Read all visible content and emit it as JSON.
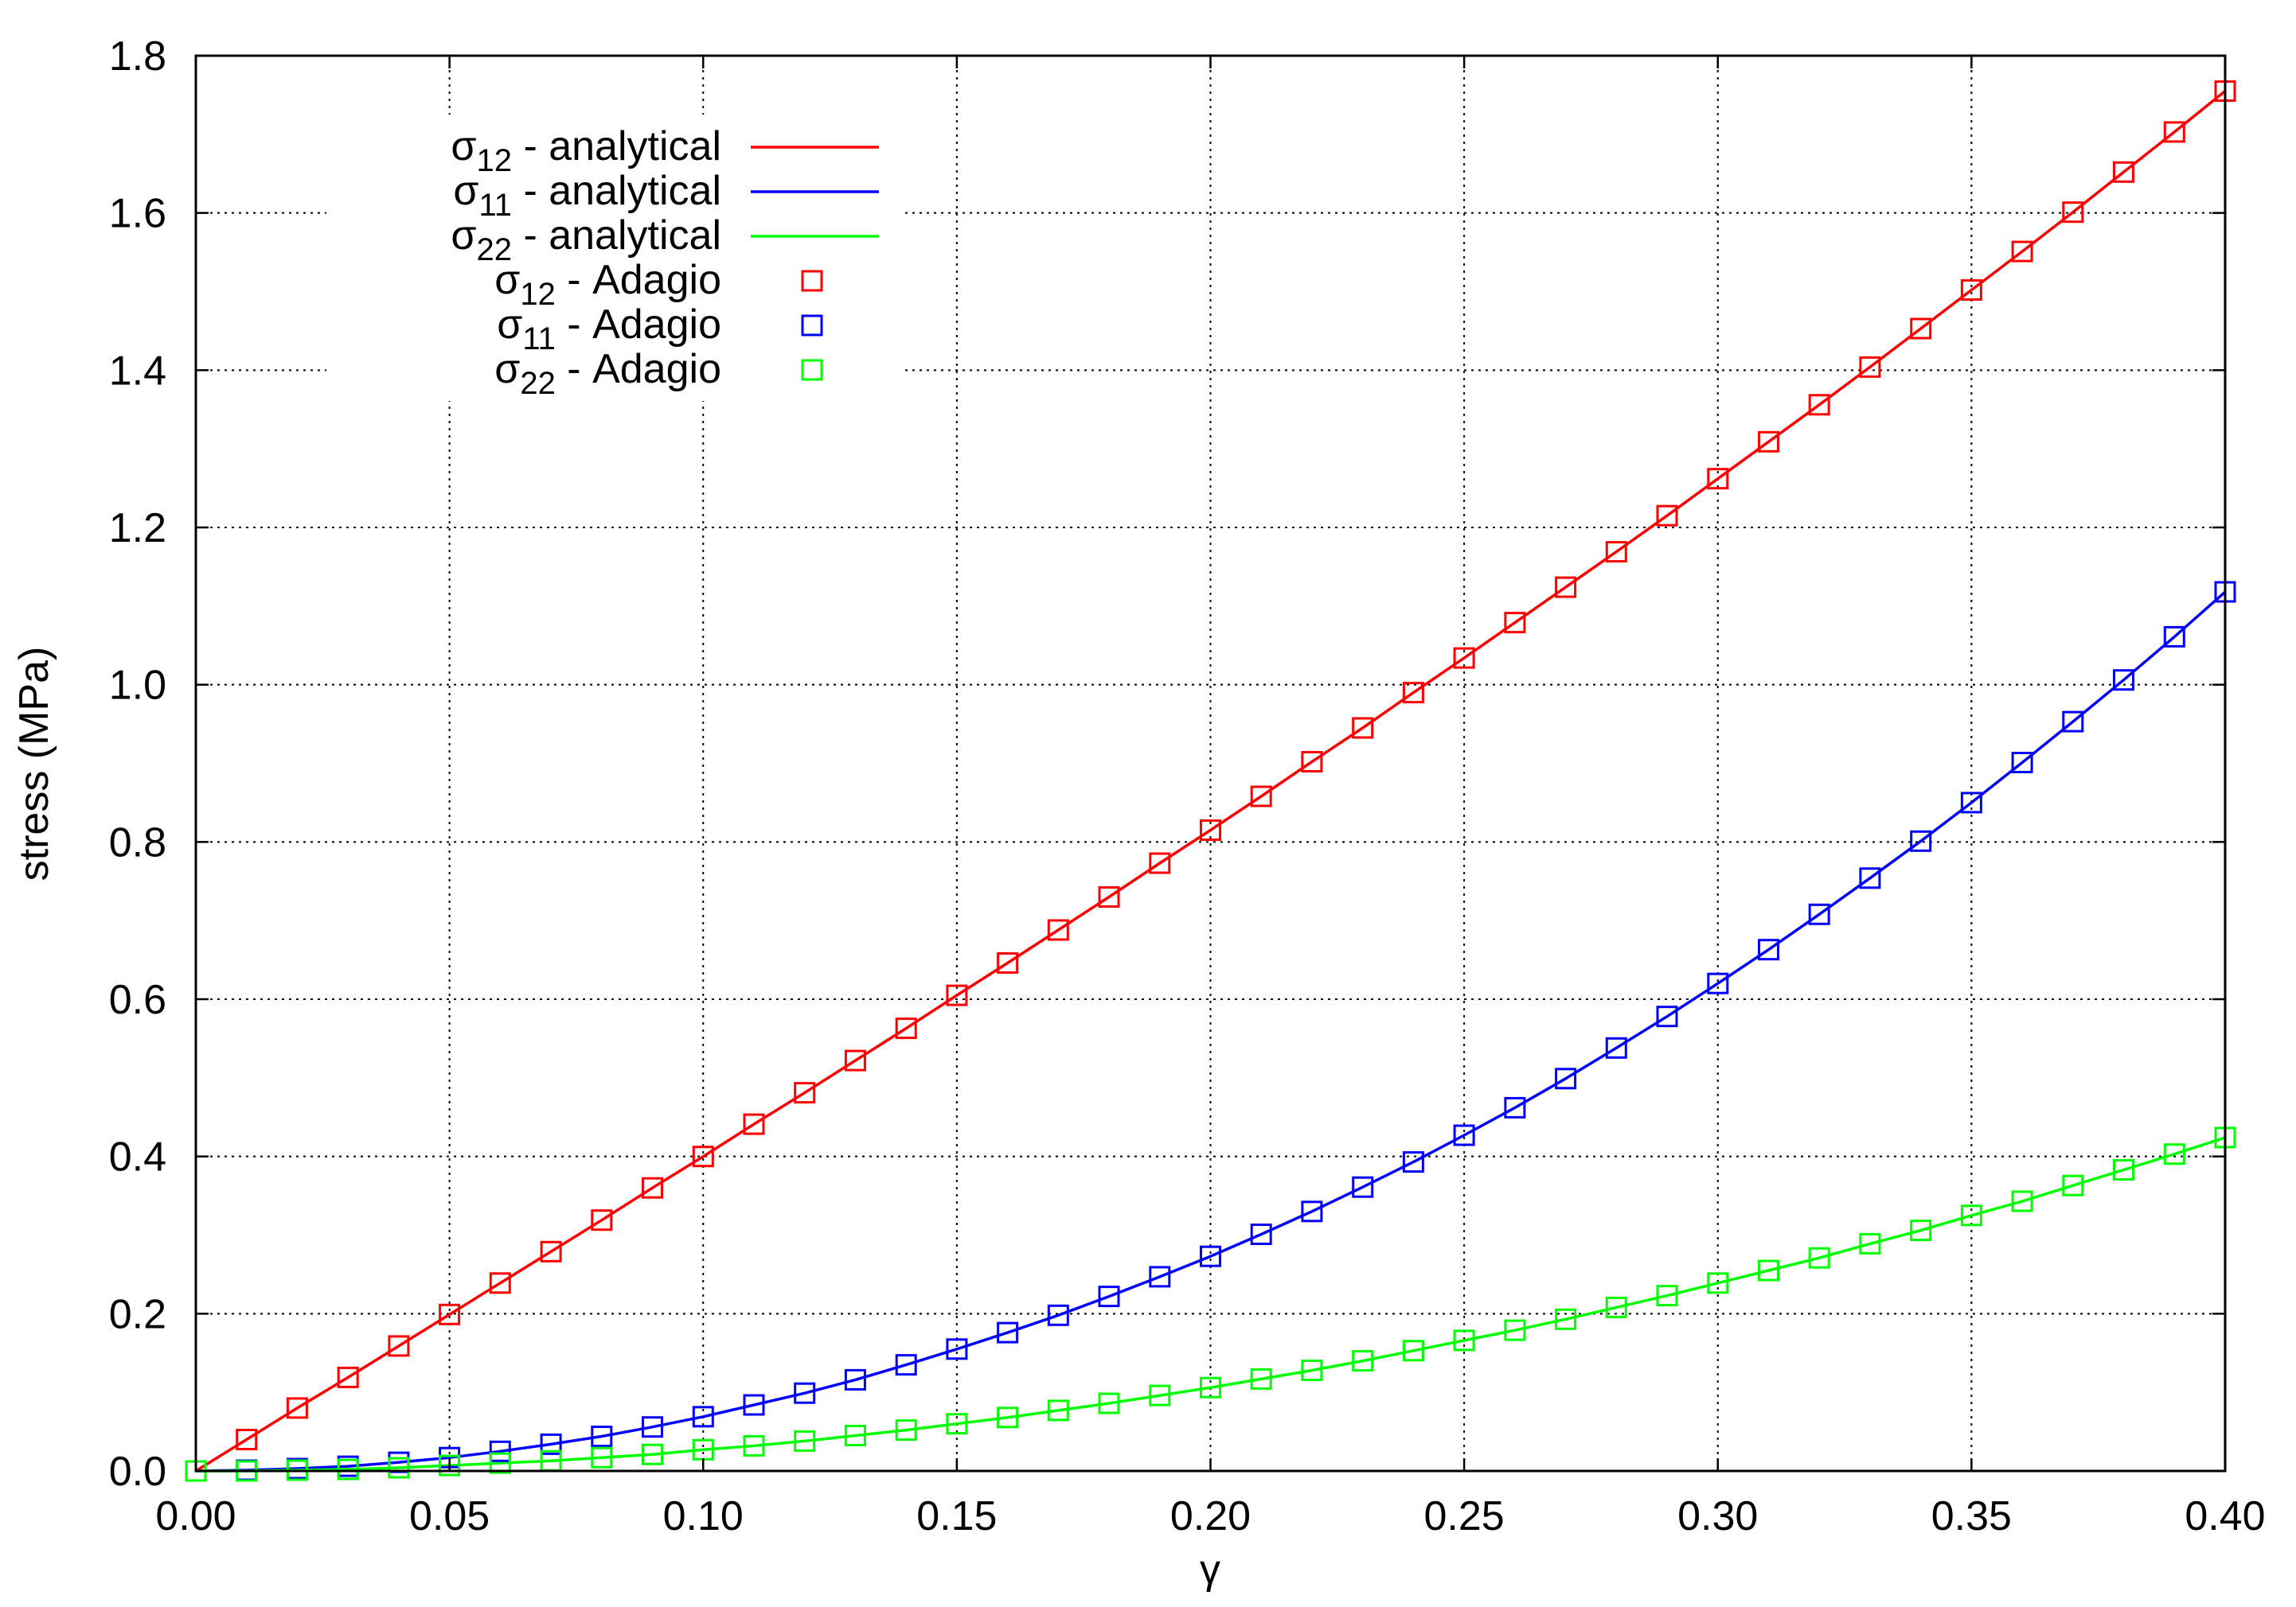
{
  "chart_data": {
    "type": "line",
    "xlabel": "γ",
    "ylabel": "stress (MPa)",
    "xlim": [
      0,
      0.4
    ],
    "ylim": [
      0,
      1.8
    ],
    "xticks": [
      "0.00",
      "0.05",
      "0.10",
      "0.15",
      "0.20",
      "0.25",
      "0.30",
      "0.35",
      "0.40"
    ],
    "yticks": [
      "0.0",
      "0.2",
      "0.4",
      "0.6",
      "0.8",
      "1.0",
      "1.2",
      "1.4",
      "1.6",
      "1.8"
    ],
    "grid": true,
    "legend_position": "top-left",
    "x": [
      0,
      0.01,
      0.02,
      0.03,
      0.04,
      0.05,
      0.06,
      0.07,
      0.08,
      0.09,
      0.1,
      0.11,
      0.12,
      0.13,
      0.14,
      0.15,
      0.16,
      0.17,
      0.18,
      0.19,
      0.2,
      0.21,
      0.22,
      0.23,
      0.24,
      0.25,
      0.26,
      0.27,
      0.28,
      0.29,
      0.3,
      0.31,
      0.32,
      0.33,
      0.34,
      0.35,
      0.36,
      0.37,
      0.38,
      0.39,
      0.4
    ],
    "series": [
      {
        "name": "σ12 - analytical",
        "type": "line",
        "color": "#ff0000",
        "values": [
          0,
          0.04,
          0.08,
          0.119,
          0.159,
          0.199,
          0.239,
          0.279,
          0.319,
          0.36,
          0.4,
          0.441,
          0.481,
          0.522,
          0.563,
          0.605,
          0.646,
          0.688,
          0.73,
          0.773,
          0.815,
          0.858,
          0.902,
          0.945,
          0.99,
          1.034,
          1.079,
          1.124,
          1.169,
          1.215,
          1.262,
          1.309,
          1.356,
          1.404,
          1.453,
          1.502,
          1.551,
          1.601,
          1.652,
          1.703,
          1.755
        ]
      },
      {
        "name": "σ11 - analytical",
        "type": "line",
        "color": "#0000ff",
        "values": [
          0,
          0.001,
          0.003,
          0.006,
          0.011,
          0.017,
          0.025,
          0.034,
          0.044,
          0.056,
          0.069,
          0.084,
          0.099,
          0.116,
          0.135,
          0.155,
          0.176,
          0.198,
          0.222,
          0.247,
          0.273,
          0.301,
          0.33,
          0.361,
          0.393,
          0.427,
          0.462,
          0.499,
          0.538,
          0.578,
          0.62,
          0.663,
          0.708,
          0.754,
          0.801,
          0.85,
          0.901,
          0.953,
          1.006,
          1.061,
          1.118
        ]
      },
      {
        "name": "σ22 - analytical",
        "type": "line",
        "color": "#00ff00",
        "values": [
          0,
          0.0,
          0.001,
          0.002,
          0.004,
          0.007,
          0.01,
          0.013,
          0.017,
          0.021,
          0.027,
          0.032,
          0.038,
          0.045,
          0.052,
          0.06,
          0.068,
          0.077,
          0.086,
          0.096,
          0.106,
          0.117,
          0.128,
          0.14,
          0.153,
          0.166,
          0.179,
          0.193,
          0.208,
          0.223,
          0.239,
          0.255,
          0.271,
          0.289,
          0.306,
          0.325,
          0.343,
          0.363,
          0.383,
          0.403,
          0.424
        ]
      },
      {
        "name": "σ12 - Adagio",
        "type": "scatter",
        "marker": "open-square",
        "color": "#ff0000",
        "values": [
          0,
          0.04,
          0.08,
          0.119,
          0.159,
          0.199,
          0.239,
          0.279,
          0.319,
          0.36,
          0.4,
          0.441,
          0.481,
          0.522,
          0.563,
          0.605,
          0.646,
          0.688,
          0.73,
          0.773,
          0.815,
          0.858,
          0.902,
          0.945,
          0.99,
          1.034,
          1.079,
          1.124,
          1.169,
          1.215,
          1.262,
          1.309,
          1.356,
          1.404,
          1.453,
          1.502,
          1.551,
          1.601,
          1.652,
          1.703,
          1.755
        ]
      },
      {
        "name": "σ11 - Adagio",
        "type": "scatter",
        "marker": "open-square",
        "color": "#0000ff",
        "values": [
          0,
          0.001,
          0.003,
          0.006,
          0.011,
          0.017,
          0.025,
          0.034,
          0.044,
          0.056,
          0.069,
          0.084,
          0.099,
          0.116,
          0.135,
          0.155,
          0.176,
          0.198,
          0.222,
          0.247,
          0.273,
          0.301,
          0.33,
          0.361,
          0.393,
          0.427,
          0.462,
          0.499,
          0.538,
          0.578,
          0.62,
          0.663,
          0.708,
          0.754,
          0.801,
          0.85,
          0.901,
          0.953,
          1.006,
          1.061,
          1.118
        ]
      },
      {
        "name": "σ22 - Adagio",
        "type": "scatter",
        "marker": "open-square",
        "color": "#00ff00",
        "values": [
          0,
          0.0,
          0.001,
          0.002,
          0.004,
          0.007,
          0.01,
          0.013,
          0.017,
          0.021,
          0.027,
          0.032,
          0.038,
          0.045,
          0.052,
          0.06,
          0.068,
          0.077,
          0.086,
          0.096,
          0.106,
          0.117,
          0.128,
          0.14,
          0.153,
          0.166,
          0.179,
          0.193,
          0.208,
          0.223,
          0.239,
          0.255,
          0.271,
          0.289,
          0.306,
          0.325,
          0.343,
          0.363,
          0.383,
          0.403,
          0.424
        ]
      }
    ]
  }
}
